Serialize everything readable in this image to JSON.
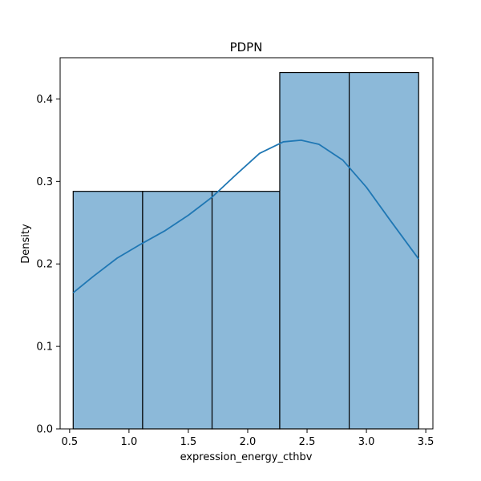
{
  "chart_data": {
    "type": "bar",
    "title": "PDPN",
    "xlabel": "expression_energy_cthbv",
    "ylabel": "Density",
    "xlim": [
      0.42,
      3.56
    ],
    "ylim": [
      0,
      0.45
    ],
    "xticks": [
      0.5,
      1.0,
      1.5,
      2.0,
      2.5,
      3.0,
      3.5
    ],
    "xtick_labels": [
      "0.5",
      "1.0",
      "1.5",
      "2.0",
      "2.5",
      "3.0",
      "3.5"
    ],
    "yticks": [
      0,
      0.1,
      0.2,
      0.3,
      0.4
    ],
    "ytick_labels": [
      "0.0",
      "0.1",
      "0.2",
      "0.3",
      "0.4"
    ],
    "bins": [
      {
        "x0": 0.53,
        "x1": 1.115,
        "value": 0.288
      },
      {
        "x0": 1.115,
        "x1": 1.7,
        "value": 0.288
      },
      {
        "x0": 1.7,
        "x1": 2.27,
        "value": 0.288
      },
      {
        "x0": 2.27,
        "x1": 2.855,
        "value": 0.432
      },
      {
        "x0": 2.855,
        "x1": 3.44,
        "value": 0.432
      }
    ],
    "kde": {
      "x": [
        0.53,
        0.7,
        0.9,
        1.1,
        1.3,
        1.5,
        1.7,
        1.9,
        2.1,
        2.3,
        2.45,
        2.6,
        2.8,
        3.0,
        3.2,
        3.44
      ],
      "y": [
        0.165,
        0.185,
        0.207,
        0.224,
        0.24,
        0.259,
        0.281,
        0.308,
        0.334,
        0.348,
        0.35,
        0.345,
        0.326,
        0.293,
        0.253,
        0.206
      ]
    },
    "colors": {
      "bar_fill": "#8cb9d9",
      "bar_edge": "#000000",
      "kde_line": "#1f77b4"
    },
    "grid": false
  }
}
